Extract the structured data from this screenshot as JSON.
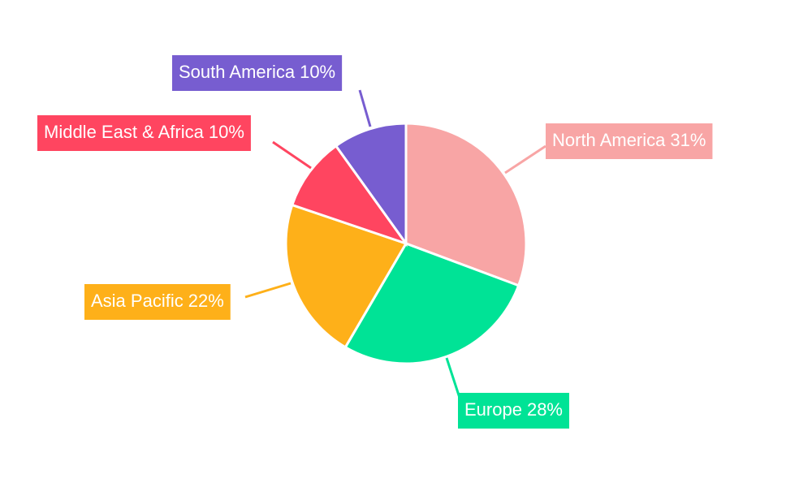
{
  "chart_data": {
    "type": "pie",
    "categories": [
      "North America",
      "Europe",
      "Asia Pacific",
      "Middle East & Africa",
      "South America"
    ],
    "values": [
      31,
      28,
      22,
      10,
      10
    ],
    "value_labels": [
      "31%",
      "28%",
      "22%",
      "10%",
      "10%"
    ],
    "colors": [
      "#f8a5a5",
      "#00e396",
      "#feb019",
      "#ff4560",
      "#775dd0"
    ]
  }
}
